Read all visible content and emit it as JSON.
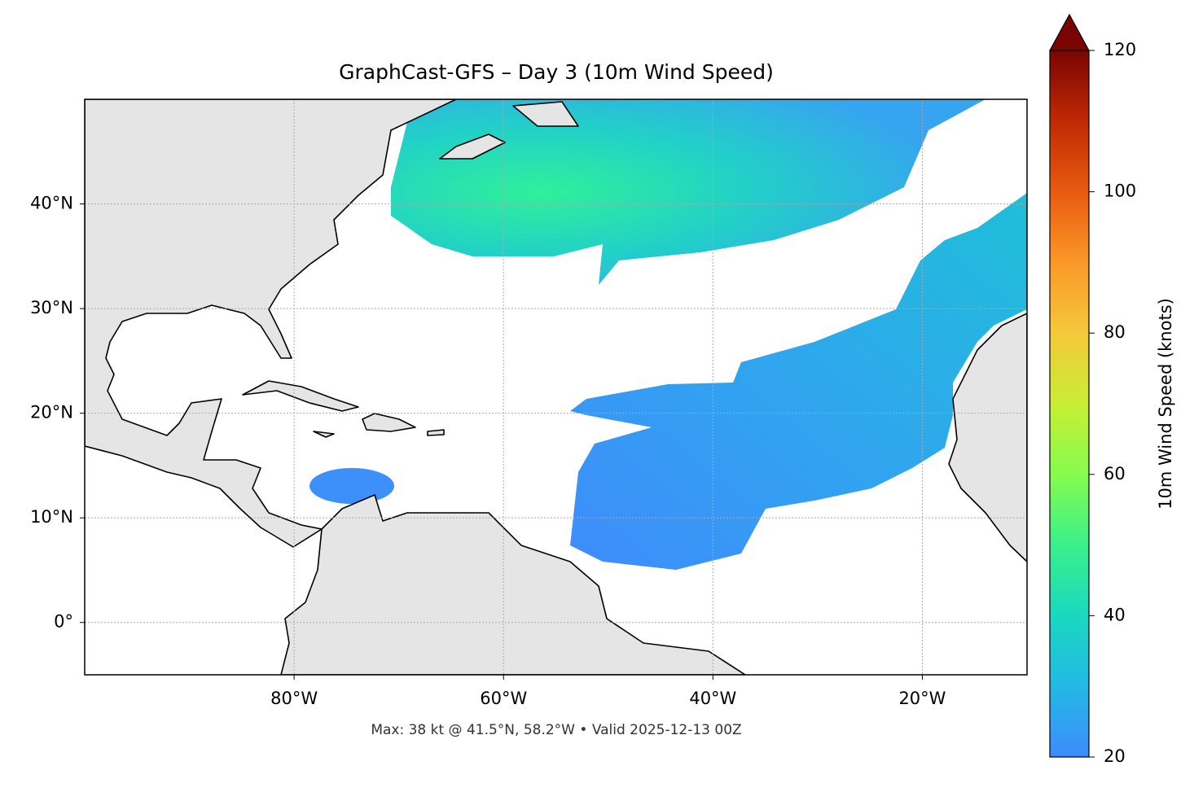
{
  "chart_data": {
    "type": "map",
    "title": "GraphCast-GFS – Day 3 (10m Wind Speed)",
    "footer": "Max: 38 kt @ 41.5°N, 58.2°W • Valid 2025-12-13 00Z",
    "xlim": [
      -100,
      -10
    ],
    "ylim": [
      -5,
      50
    ],
    "xticks": [
      {
        "value": -80,
        "label": "80°W"
      },
      {
        "value": -60,
        "label": "60°W"
      },
      {
        "value": -40,
        "label": "40°W"
      },
      {
        "value": -20,
        "label": "20°W"
      }
    ],
    "yticks": [
      {
        "value": 0,
        "label": "0°"
      },
      {
        "value": 10,
        "label": "10°N"
      },
      {
        "value": 20,
        "label": "20°N"
      },
      {
        "value": 30,
        "label": "30°N"
      },
      {
        "value": 40,
        "label": "40°N"
      }
    ],
    "grid": true,
    "colorbar": {
      "label": "10m Wind Speed (knots)",
      "lim": [
        20,
        120
      ],
      "ticks": [
        20,
        40,
        60,
        80,
        100,
        120
      ]
    }
  }
}
